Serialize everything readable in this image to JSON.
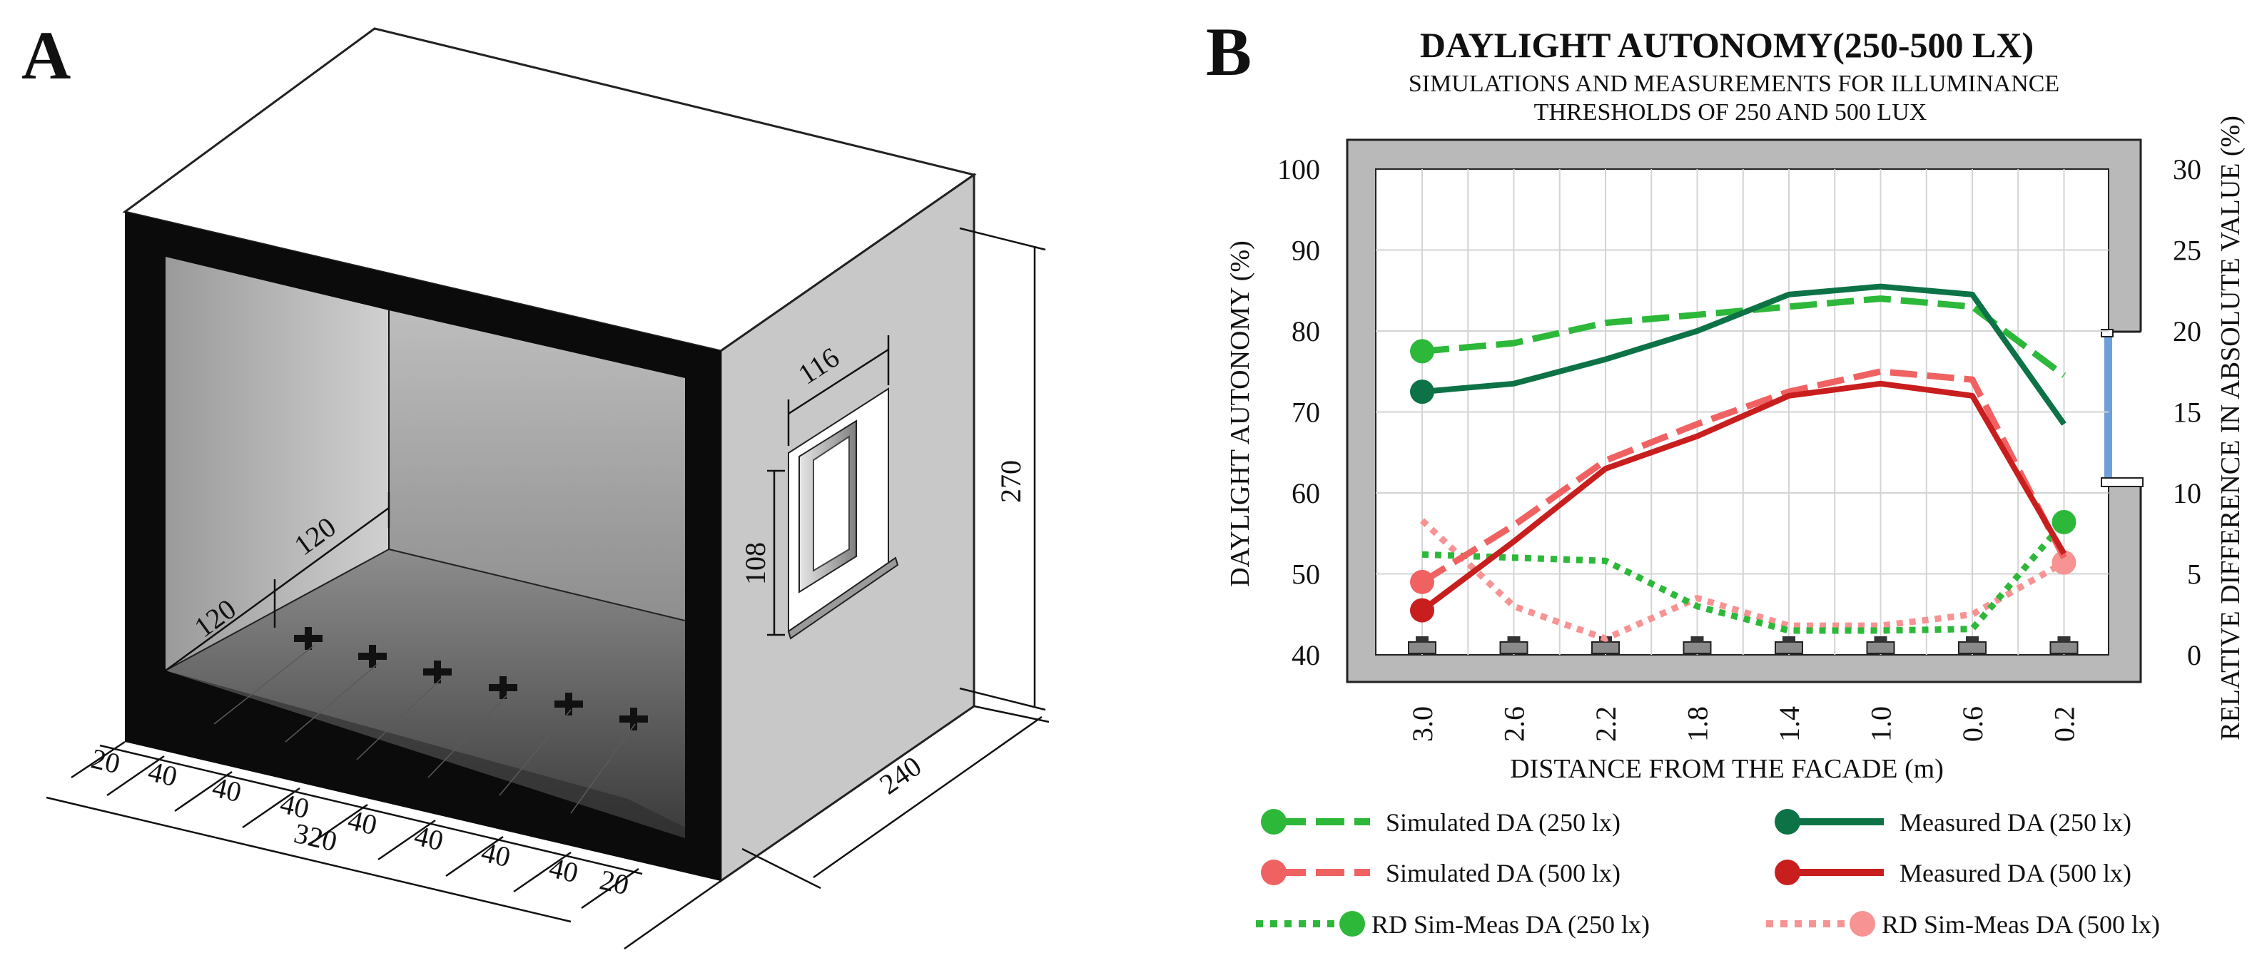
{
  "panel_a": {
    "letter": "A",
    "dims": {
      "d120a": "120",
      "d120b": "120",
      "d116": "116",
      "d108": "108",
      "d270": "270",
      "d240": "240",
      "d320": "320",
      "bottom_segments": [
        "20",
        "40",
        "40",
        "40",
        "40",
        "40",
        "40",
        "40",
        "20"
      ]
    }
  },
  "panel_b": {
    "letter": "B"
  },
  "colors": {
    "sim250": "#2db83a",
    "meas250": "#0d7346",
    "sim500": "#f06262",
    "meas500": "#c81e1e",
    "rd250": "#2db83a",
    "rd500": "#f79393",
    "wall": "#b9b9b9",
    "window": "#6f9fd8"
  },
  "chart_data": {
    "type": "line",
    "title": "DAYLIGHT AUTONOMY(250-500 LX)",
    "subtitle_line1": "SIMULATIONS AND MEASUREMENTS FOR ILLUMINANCE",
    "subtitle_line2": "THRESHOLDS OF 250 AND 500 LUX",
    "xlabel": "DISTANCE FROM THE FACADE (m)",
    "ylabel": "DAYLIGHT AUTONOMY (%)",
    "y2label": "RELATIVE DIFFERENCE IN ABSOLUTE VALUE (%)",
    "categories": [
      "3.0",
      "2.6",
      "2.2",
      "1.8",
      "1.4",
      "1.0",
      "0.6",
      "0.2"
    ],
    "ylim": [
      40,
      100
    ],
    "yticks": [
      "40",
      "50",
      "60",
      "70",
      "80",
      "90",
      "100"
    ],
    "y2lim": [
      0,
      30
    ],
    "y2ticks": [
      "0",
      "5",
      "10",
      "15",
      "20",
      "25",
      "30"
    ],
    "series": [
      {
        "name": "Simulated DA (250 lx)",
        "axis": "left",
        "style": "dashed",
        "marker": "start",
        "color_key": "sim250",
        "values": [
          77.5,
          78.5,
          81,
          82,
          83,
          84,
          83,
          74.5
        ]
      },
      {
        "name": "Measured DA (250 lx)",
        "axis": "left",
        "style": "solid",
        "marker": "start",
        "color_key": "meas250",
        "values": [
          72.5,
          73.5,
          76.5,
          80,
          84.5,
          85.5,
          84.5,
          68.5
        ]
      },
      {
        "name": "Simulated DA (500 lx)",
        "axis": "left",
        "style": "dashed",
        "marker": "start",
        "color_key": "sim500",
        "values": [
          49,
          56,
          64,
          68.5,
          72.5,
          75,
          74,
          52
        ]
      },
      {
        "name": "Measured DA (500 lx)",
        "axis": "left",
        "style": "solid",
        "marker": "start",
        "color_key": "meas500",
        "values": [
          45.5,
          54,
          63,
          67,
          72,
          73.5,
          72,
          52.5
        ]
      },
      {
        "name": "RD Sim-Meas DA (250 lx)",
        "axis": "right",
        "style": "dotted",
        "marker": "end",
        "color_key": "rd250",
        "values": [
          6.2,
          6.0,
          5.8,
          3.0,
          1.5,
          1.5,
          1.6,
          8.2
        ]
      },
      {
        "name": "RD Sim-Meas DA (500 lx)",
        "axis": "right",
        "style": "dotted",
        "marker": "end",
        "color_key": "rd500",
        "values": [
          8.3,
          3.0,
          1.0,
          3.5,
          1.8,
          1.8,
          2.5,
          5.7
        ]
      }
    ]
  }
}
